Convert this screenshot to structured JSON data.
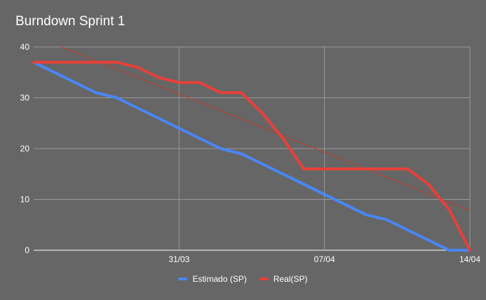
{
  "chart_data": {
    "type": "line",
    "title": "Burndown Sprint 1",
    "xlabel": "",
    "ylabel": "",
    "ylim": [
      0,
      40
    ],
    "y_ticks": [
      0,
      10,
      20,
      30,
      40
    ],
    "x_ticks": [
      "31/03",
      "07/04",
      "14/04"
    ],
    "x_range": [
      "2023-03-24",
      "2023-04-14"
    ],
    "grid": true,
    "legend_position": "bottom",
    "background": "#666666",
    "series": [
      {
        "name": "Estimado (SP)",
        "color": "#4a86f5",
        "x": [
          "2023-03-24",
          "2023-03-25",
          "2023-03-26",
          "2023-03-27",
          "2023-03-28",
          "2023-03-29",
          "2023-03-30",
          "2023-03-31",
          "2023-04-01",
          "2023-04-02",
          "2023-04-03",
          "2023-04-04",
          "2023-04-05",
          "2023-04-06",
          "2023-04-07",
          "2023-04-08",
          "2023-04-09",
          "2023-04-10",
          "2023-04-11",
          "2023-04-12",
          "2023-04-13",
          "2023-04-14"
        ],
        "values": [
          37,
          35,
          33,
          31,
          30,
          28,
          26,
          24,
          22,
          20,
          19,
          17,
          15,
          13,
          11,
          9,
          7,
          6,
          4,
          2,
          0,
          0
        ]
      },
      {
        "name": "Real(SP)",
        "color": "#e8403a",
        "x": [
          "2023-03-24",
          "2023-03-25",
          "2023-03-26",
          "2023-03-27",
          "2023-03-28",
          "2023-03-29",
          "2023-03-30",
          "2023-03-31",
          "2023-04-01",
          "2023-04-02",
          "2023-04-03",
          "2023-04-04",
          "2023-04-05",
          "2023-04-06",
          "2023-04-07",
          "2023-04-08",
          "2023-04-09",
          "2023-04-10",
          "2023-04-11",
          "2023-04-12",
          "2023-04-13",
          "2023-04-14"
        ],
        "values": [
          37,
          37,
          37,
          37,
          37,
          36,
          34,
          33,
          33,
          31,
          31,
          27,
          22,
          16,
          16,
          16,
          16,
          16,
          16,
          13,
          8,
          0
        ]
      }
    ],
    "trendline": {
      "series": "Real(SP)",
      "color": "#c0392b",
      "values_at_ends": [
        42.2,
        7.8
      ]
    }
  }
}
